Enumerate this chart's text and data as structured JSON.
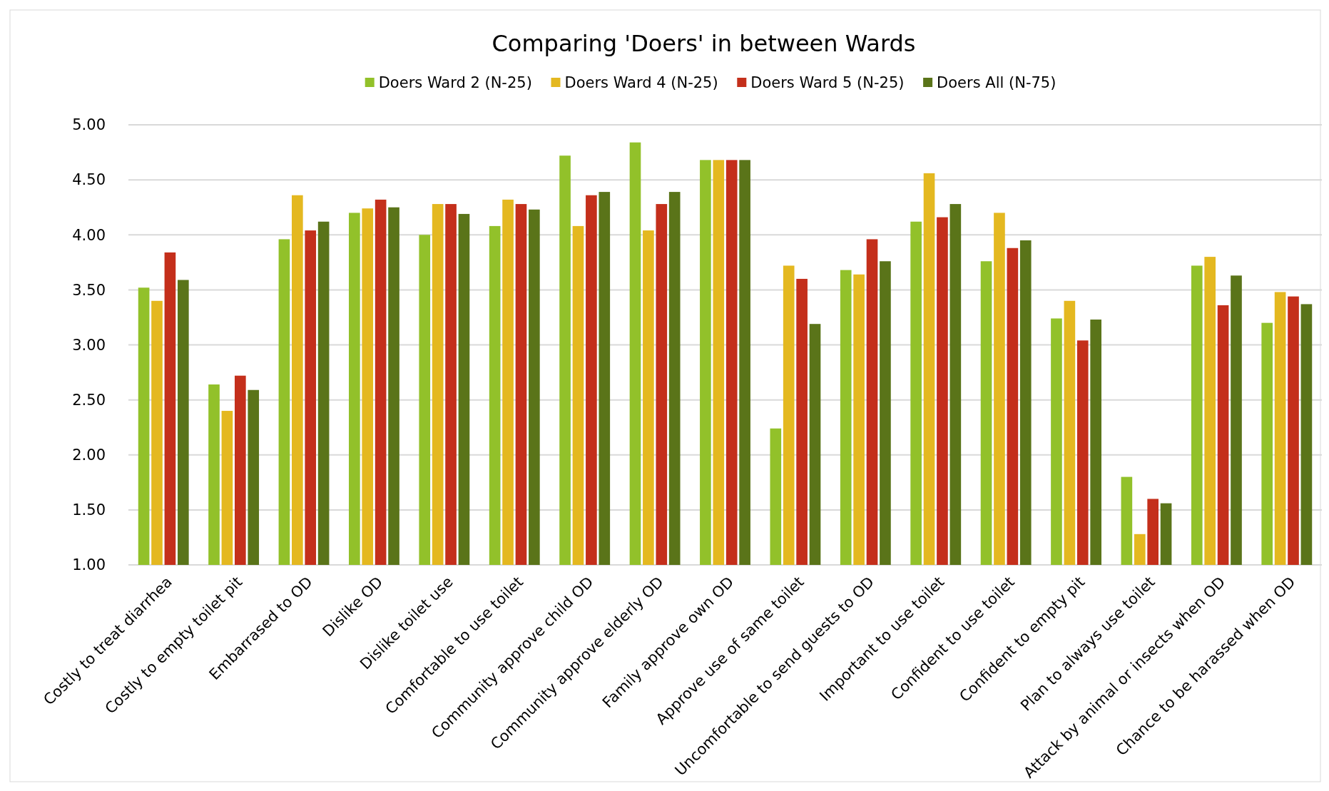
{
  "chart_data": {
    "type": "bar",
    "title": "Comparing 'Doers' in between Wards",
    "categories": [
      "Costly to treat diarrhea",
      "Costly to empty toilet pit",
      "Embarrased to OD",
      "Dislike OD",
      "Dislike toilet use",
      "Comfortable to use toilet",
      "Community approve child OD",
      "Community approve elderly OD",
      "Family approve own OD",
      "Approve use of same toilet",
      "Uncomfortable to send guests to OD",
      "Important to use toilet",
      "Confident to use toilet",
      "Confident to empty pit",
      "Plan to always use toilet",
      "Attack by animal or insects when OD",
      "Chance to be harassed when OD"
    ],
    "series": [
      {
        "name": "Doers Ward 2 (N-25)",
        "color": "#92c12a",
        "values": [
          3.52,
          2.64,
          3.96,
          4.2,
          4.0,
          4.08,
          4.72,
          4.84,
          4.68,
          2.24,
          3.68,
          4.12,
          3.76,
          3.24,
          1.8,
          3.72,
          3.2
        ]
      },
      {
        "name": "Doers Ward 4 (N-25)",
        "color": "#e4b820",
        "values": [
          3.4,
          2.4,
          4.36,
          4.24,
          4.28,
          4.32,
          4.08,
          4.04,
          4.68,
          3.72,
          3.64,
          4.56,
          4.2,
          3.4,
          1.28,
          3.8,
          3.48
        ]
      },
      {
        "name": "Doers Ward 5 (N-25)",
        "color": "#c42f1b",
        "values": [
          3.84,
          2.72,
          4.04,
          4.32,
          4.28,
          4.28,
          4.36,
          4.28,
          4.68,
          3.6,
          3.96,
          4.16,
          3.88,
          3.04,
          1.6,
          3.36,
          3.44
        ]
      },
      {
        "name": "Doers All (N-75)",
        "color": "#5a7419",
        "values": [
          3.59,
          2.59,
          4.12,
          4.25,
          4.19,
          4.23,
          4.39,
          4.39,
          4.68,
          3.19,
          3.76,
          4.28,
          3.95,
          3.23,
          1.56,
          3.63,
          3.37
        ]
      }
    ],
    "ylim": [
      1,
      5
    ],
    "yticks": [
      {
        "value": 1,
        "label": "1.00"
      },
      {
        "value": 1.5,
        "label": "1.50"
      },
      {
        "value": 2,
        "label": "2.00"
      },
      {
        "value": 2.5,
        "label": "2.50"
      },
      {
        "value": 3,
        "label": "3.00"
      },
      {
        "value": 3.5,
        "label": "3.50"
      },
      {
        "value": 4,
        "label": "4.00"
      },
      {
        "value": 4.5,
        "label": "4.50"
      },
      {
        "value": 5,
        "label": "5.00"
      }
    ],
    "grid": "y",
    "legend": "top"
  }
}
